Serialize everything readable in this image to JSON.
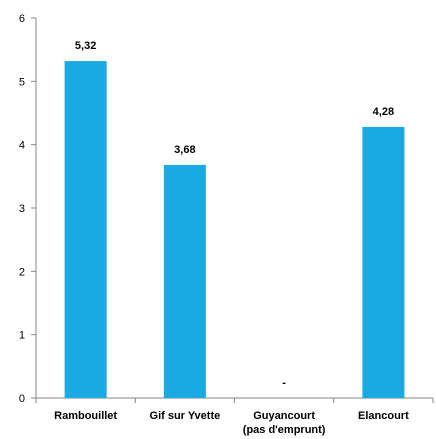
{
  "chart_data": {
    "type": "bar",
    "categories": [
      [
        "Rambouillet"
      ],
      [
        "Gif sur Yvette"
      ],
      [
        "Guyancourt",
        "(pas d'emprunt)"
      ],
      [
        "Elancourt"
      ]
    ],
    "values": [
      5.32,
      3.68,
      0,
      4.28
    ],
    "data_labels": [
      "5,32",
      "3,68",
      "-",
      "4,28"
    ],
    "yticks": [
      0,
      1,
      2,
      3,
      4,
      5,
      6
    ],
    "ylim": [
      0,
      6
    ],
    "bar_color": "#1aa9e0",
    "grid": false,
    "title": "",
    "xlabel": "",
    "ylabel": ""
  }
}
